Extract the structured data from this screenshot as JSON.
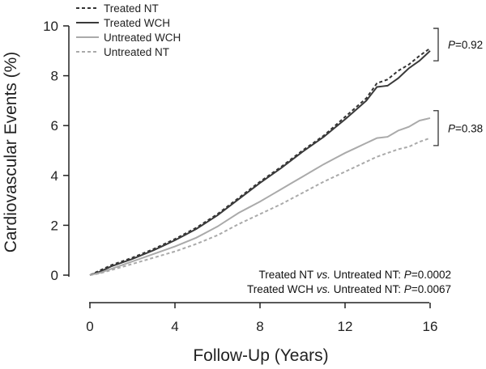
{
  "chart_data": {
    "type": "line",
    "title": "",
    "xlabel": "Follow-Up (Years)",
    "ylabel": "Cardiovascular Events (%)",
    "xlim": [
      0,
      16
    ],
    "ylim": [
      0,
      10
    ],
    "xticks": [
      "0",
      "4",
      "8",
      "12",
      "16"
    ],
    "yticks": [
      "0",
      "2",
      "4",
      "6",
      "8",
      "10"
    ],
    "grid": false,
    "legend_position": "top-left",
    "series": [
      {
        "name": "Treated NT",
        "style": "dashed",
        "color": "#333333",
        "x": [
          0,
          0.5,
          1,
          2,
          3,
          4,
          5,
          6,
          7,
          8,
          9,
          10,
          11,
          12,
          13,
          13.5,
          14,
          14.5,
          15,
          15.5,
          16
        ],
        "y": [
          0,
          0.2,
          0.4,
          0.7,
          1.05,
          1.45,
          1.9,
          2.45,
          3.1,
          3.75,
          4.35,
          5.0,
          5.6,
          6.35,
          7.1,
          7.7,
          7.85,
          8.2,
          8.45,
          8.8,
          9.1
        ]
      },
      {
        "name": "Treated WCH",
        "style": "solid",
        "color": "#3a3a3a",
        "x": [
          0,
          0.5,
          1,
          2,
          3,
          4,
          5,
          6,
          7,
          8,
          9,
          10,
          11,
          12,
          13,
          13.5,
          14,
          14.5,
          15,
          15.5,
          16
        ],
        "y": [
          0,
          0.15,
          0.35,
          0.65,
          1.0,
          1.4,
          1.85,
          2.4,
          3.05,
          3.7,
          4.3,
          4.95,
          5.55,
          6.25,
          7.0,
          7.55,
          7.6,
          7.9,
          8.3,
          8.6,
          9.0
        ]
      },
      {
        "name": "Untreated WCH",
        "style": "solid",
        "color": "#aaaaaa",
        "x": [
          0,
          0.5,
          1,
          2,
          3,
          4,
          5,
          6,
          7,
          8,
          9,
          10,
          11,
          12,
          13,
          13.5,
          14,
          14.5,
          15,
          15.5,
          16
        ],
        "y": [
          0,
          0.1,
          0.25,
          0.55,
          0.85,
          1.15,
          1.5,
          1.95,
          2.5,
          2.95,
          3.45,
          3.95,
          4.45,
          4.9,
          5.3,
          5.5,
          5.55,
          5.8,
          5.95,
          6.2,
          6.3
        ]
      },
      {
        "name": "Untreated NT",
        "style": "dashed",
        "color": "#aaaaaa",
        "x": [
          0,
          0.5,
          1,
          2,
          3,
          4,
          5,
          6,
          7,
          8,
          9,
          10,
          11,
          12,
          13,
          13.5,
          14,
          14.5,
          15,
          15.5,
          16
        ],
        "y": [
          0,
          0.08,
          0.2,
          0.45,
          0.7,
          0.95,
          1.25,
          1.6,
          2.05,
          2.45,
          2.85,
          3.3,
          3.75,
          4.15,
          4.55,
          4.75,
          4.9,
          5.05,
          5.15,
          5.35,
          5.5
        ]
      }
    ],
    "p_values": [
      {
        "label": "P",
        "value": "=0.92",
        "spans_series": [
          "Treated NT",
          "Treated WCH"
        ],
        "ystart": 8.6,
        "yend": 9.9
      },
      {
        "label": "P",
        "value": "=0.38",
        "spans_series": [
          "Untreated WCH",
          "Untreated NT"
        ],
        "ystart": 5.2,
        "yend": 6.6
      }
    ],
    "annotations": [
      {
        "a": "Treated NT ",
        "vs": "vs.",
        "b": " Untreated NT: ",
        "p": "P",
        "val": "=0.0002"
      },
      {
        "a": "Treated WCH ",
        "vs": "vs.",
        "b": " Untreated NT: ",
        "p": "P",
        "val": "=0.0067"
      }
    ]
  }
}
